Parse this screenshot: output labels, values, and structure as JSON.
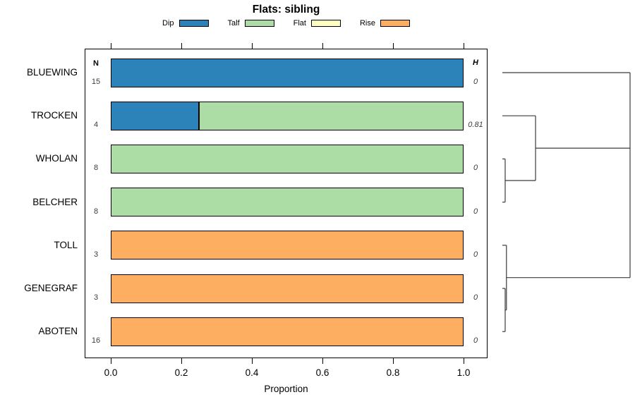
{
  "title": "Flats: sibling",
  "legend": {
    "entries": [
      {
        "label": "Dip",
        "color": "#2B83BA"
      },
      {
        "label": "Talf",
        "color": "#ABDDA4"
      },
      {
        "label": "Flat",
        "color": "#FFFFBF"
      },
      {
        "label": "Rise",
        "color": "#FDAE61"
      }
    ]
  },
  "chart_data": {
    "type": "bar",
    "orientation": "horizontal_stacked",
    "title": "Flats: sibling",
    "xlabel": "Proportion",
    "xlim": [
      0.0,
      1.0
    ],
    "x_tick_labels": [
      "0.0",
      "0.2",
      "0.4",
      "0.6",
      "0.8",
      "1.0"
    ],
    "x_tick_values": [
      0.0,
      0.2,
      0.4,
      0.6,
      0.8,
      1.0
    ],
    "grid": false,
    "categories": [
      "BLUEWING",
      "TROCKEN",
      "WHOLAN",
      "BELCHER",
      "TOLL",
      "GENEGRAF",
      "ABOTEN"
    ],
    "n_column": {
      "header": "N",
      "values": [
        "15",
        "4",
        "8",
        "8",
        "3",
        "3",
        "16"
      ]
    },
    "h_column": {
      "header": "H",
      "values": [
        "0",
        "0.81",
        "0",
        "0",
        "0",
        "0",
        "0"
      ]
    },
    "series": [
      {
        "name": "Dip",
        "color": "#2B83BA",
        "values": [
          1,
          0.25,
          0,
          0,
          0,
          0,
          0
        ]
      },
      {
        "name": "Talf",
        "color": "#ABDDA4",
        "values": [
          0,
          0.75,
          1,
          1,
          0,
          0,
          0
        ]
      },
      {
        "name": "Flat",
        "color": "#FFFFBF",
        "values": [
          0,
          0,
          0,
          0,
          0,
          0,
          0
        ]
      },
      {
        "name": "Rise",
        "color": "#FDAE61",
        "values": [
          0,
          0,
          0,
          0,
          1,
          1,
          1
        ]
      }
    ],
    "dendrogram": {
      "description": "hierarchical clustering of categories, drawn right of plot; x=0 leaf edge, x=1 root; y in row index units",
      "line_color": "#3b3b3b",
      "segments": [
        {
          "type": "h",
          "y": 0,
          "x1": 0,
          "x2": 1
        },
        {
          "type": "h",
          "y": 1,
          "x1": 0,
          "x2": 0.26
        },
        {
          "type": "h",
          "y": 2,
          "x1": 0,
          "x2": 0.022
        },
        {
          "type": "h",
          "y": 3,
          "x1": 0,
          "x2": 0.022
        },
        {
          "type": "v",
          "x": 0.022,
          "y1": 2,
          "y2": 3
        },
        {
          "type": "h",
          "y": 2.5,
          "x1": 0.022,
          "x2": 0.26
        },
        {
          "type": "v",
          "x": 0.26,
          "y1": 1,
          "y2": 2.5
        },
        {
          "type": "h",
          "y": 1.75,
          "x1": 0.26,
          "x2": 1
        },
        {
          "type": "h",
          "y": 4,
          "x1": 0,
          "x2": 0.032
        },
        {
          "type": "h",
          "y": 5,
          "x1": 0,
          "x2": 0.022
        },
        {
          "type": "h",
          "y": 6,
          "x1": 0,
          "x2": 0.022
        },
        {
          "type": "v",
          "x": 0.022,
          "y1": 5,
          "y2": 6
        },
        {
          "type": "h",
          "y": 5.5,
          "x1": 0.022,
          "x2": 0.032
        },
        {
          "type": "v",
          "x": 0.032,
          "y1": 4,
          "y2": 5.5
        },
        {
          "type": "h",
          "y": 4.75,
          "x1": 0.032,
          "x2": 1
        },
        {
          "type": "v",
          "x": 1,
          "y1": 0,
          "y2": 4.75
        }
      ]
    }
  }
}
